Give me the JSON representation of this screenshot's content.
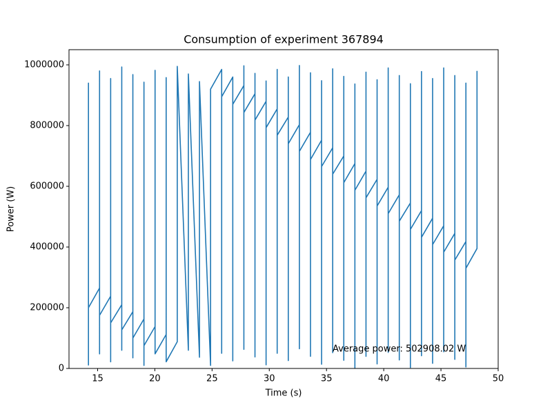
{
  "chart_data": {
    "type": "line",
    "title": "Consumption of experiment 367894",
    "xlabel": "Time (s)",
    "ylabel": "Power (W)",
    "annotation": "Average power: 502908.02 W",
    "color": "#1f77b4",
    "x": [
      14.2,
      14.2,
      14.2,
      15.17,
      15.17,
      15.17,
      15.17,
      16.14,
      16.14,
      16.14,
      16.14,
      17.11,
      17.11,
      17.11,
      17.11,
      18.08,
      18.08,
      18.08,
      18.08,
      19.05,
      19.05,
      19.05,
      19.05,
      20.02,
      20.02,
      20.02,
      20.99,
      20.99,
      20.99,
      21.96,
      21.96,
      22.93,
      22.93,
      23.9,
      23.9,
      24.87,
      24.87,
      25.84,
      25.84,
      25.84,
      26.81,
      26.81,
      26.81,
      27.78,
      27.78,
      27.78,
      27.78,
      28.75,
      28.75,
      28.75,
      28.75,
      29.72,
      29.72,
      29.72,
      29.72,
      30.69,
      30.69,
      30.69,
      30.69,
      31.66,
      31.66,
      31.66,
      31.66,
      32.63,
      32.63,
      32.63,
      32.63,
      33.6,
      33.6,
      33.6,
      33.6,
      34.57,
      34.57,
      34.57,
      34.57,
      35.54,
      35.54,
      35.54,
      35.54,
      36.51,
      36.51,
      36.51,
      36.51,
      37.48,
      37.48,
      37.48,
      37.48,
      38.45,
      38.45,
      38.45,
      38.45,
      39.42,
      39.42,
      39.42,
      39.42,
      40.39,
      40.39,
      40.39,
      40.39,
      41.36,
      41.36,
      41.36,
      41.36,
      42.33,
      42.33,
      42.33,
      42.33,
      43.3,
      43.3,
      43.3,
      43.3,
      44.27,
      44.27,
      44.27,
      44.27,
      45.24,
      45.24,
      45.24,
      45.24,
      46.21,
      46.21,
      46.21,
      46.21,
      47.18,
      47.18,
      47.18,
      47.18,
      48.15,
      48.15
    ],
    "values": [
      10000,
      940000,
      200000,
      265000,
      980000,
      48000,
      175000,
      238000,
      955000,
      22000,
      150000,
      210000,
      993000,
      60000,
      127000,
      187000,
      968000,
      35000,
      100000,
      163000,
      943000,
      10000,
      75000,
      138000,
      982000,
      48000,
      112000,
      958000,
      22000,
      88000,
      995000,
      60000,
      970000,
      37000,
      945000,
      10000,
      920000,
      985000,
      50000,
      895000,
      960000,
      25000,
      870000,
      932000,
      997000,
      63000,
      843000,
      905000,
      972000,
      38000,
      818000,
      880000,
      947000,
      12000,
      793000,
      855000,
      985000,
      50000,
      768000,
      828000,
      960000,
      26000,
      740000,
      803000,
      998000,
      65000,
      715000,
      778000,
      974000,
      40000,
      688000,
      752000,
      948000,
      14000,
      665000,
      727000,
      987000,
      52000,
      640000,
      700000,
      962000,
      27000,
      612000,
      675000,
      937000,
      2000,
      587000,
      650000,
      976000,
      40000,
      562000,
      623000,
      951000,
      15000,
      535000,
      597000,
      990000,
      53000,
      510000,
      572000,
      965000,
      28000,
      485000,
      545000,
      938000,
      3000,
      458000,
      520000,
      978000,
      42000,
      432000,
      495000,
      955000,
      17000,
      408000,
      470000,
      990000,
      55000,
      383000,
      445000,
      965000,
      30000,
      357000,
      418000,
      940000,
      5000,
      330000,
      395000,
      980000
    ],
    "xlim": [
      12.5,
      50
    ],
    "xticks": [
      15,
      20,
      25,
      30,
      35,
      40,
      45,
      50
    ],
    "ylim": [
      0,
      1050000
    ],
    "yticks": [
      0,
      200000,
      400000,
      600000,
      800000,
      1000000
    ]
  }
}
